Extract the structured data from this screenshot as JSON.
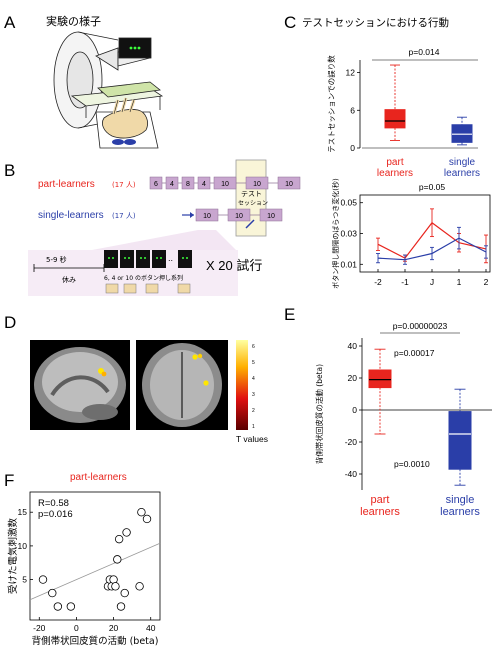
{
  "panels": {
    "A": {
      "letter": "A",
      "title": "実験の様子"
    },
    "B": {
      "letter": "B",
      "part_label": "part-learners",
      "part_n": "(17 人)",
      "single_label": "single-learners",
      "single_n": "(17 人)",
      "part_seq": [
        "6",
        "4",
        "8",
        "4",
        "10",
        "10",
        "10"
      ],
      "single_seq": [
        "10",
        "10",
        "10"
      ],
      "test_label_1": "テスト",
      "test_label_2": "セッション",
      "time_label": "5-9 秒",
      "rest_label": "休み",
      "press_label": "6, 4 or 10 のボタン押し系列",
      "repeat_label": "X 20 試行"
    },
    "C": {
      "letter": "C",
      "title": "テストセッションにおける行動"
    },
    "D": {
      "letter": "D",
      "colorbar_label": "T values",
      "colorbar_ticks": [
        "1",
        "2",
        "3",
        "4",
        "5",
        "6"
      ]
    },
    "E": {
      "letter": "E"
    },
    "F": {
      "letter": "F",
      "title": "part-learners"
    }
  },
  "chart_data": [
    {
      "type": "box",
      "panel": "C-top",
      "ylabel": "テストセッションでの誤り数",
      "categories": [
        "part learners",
        "single learners"
      ],
      "yticks": [
        0,
        6,
        12
      ],
      "ylim": [
        0,
        14
      ],
      "annotation": "p=0.014",
      "boxes": [
        {
          "name": "part learners",
          "min": 1.2,
          "q1": 3.2,
          "median": 4.3,
          "q3": 6.1,
          "max": 13.2,
          "color": "#e8251e"
        },
        {
          "name": "single learners",
          "min": 0.5,
          "q1": 0.9,
          "median": 2.2,
          "q3": 3.7,
          "max": 4.9,
          "color": "#2a3ea8"
        }
      ]
    },
    {
      "type": "line",
      "panel": "C-bottom",
      "ylabel": "ボタン押し間隔のばらつき変化(秒)",
      "x": [
        "-2",
        "-1",
        "J",
        "1",
        "2"
      ],
      "yticks": [
        0.01,
        0.03,
        0.05
      ],
      "ylim": [
        0.005,
        0.055
      ],
      "annotation": "p=0.05",
      "series": [
        {
          "name": "part learners",
          "color": "#e8251e",
          "values": [
            0.023,
            0.014,
            0.037,
            0.024,
            0.02
          ],
          "err": [
            0.004,
            0.002,
            0.009,
            0.006,
            0.009
          ]
        },
        {
          "name": "single learners",
          "color": "#2a3ea8",
          "values": [
            0.014,
            0.013,
            0.017,
            0.027,
            0.018
          ],
          "err": [
            0.003,
            0.003,
            0.004,
            0.007,
            0.004
          ]
        }
      ]
    },
    {
      "type": "box",
      "panel": "E",
      "ylabel": "背側帯状回皮質の活動 (beta)",
      "categories": [
        "part learners",
        "single learners"
      ],
      "yticks": [
        40,
        20,
        0,
        -20,
        -40
      ],
      "ylim": [
        -50,
        45
      ],
      "annotations": [
        "p=0.00000023",
        "p=0.00017",
        "p=0.0010"
      ],
      "boxes": [
        {
          "name": "part learners",
          "min": -15,
          "q1": 14,
          "median": 19,
          "q3": 25,
          "max": 38,
          "color": "#e8251e"
        },
        {
          "name": "single learners",
          "min": -47,
          "q1": -37,
          "median": -15,
          "q3": -1,
          "max": 13,
          "color": "#2a3ea8"
        }
      ]
    },
    {
      "type": "scatter",
      "panel": "F",
      "xlabel": "背側帯状回皮質の活動 (beta)",
      "ylabel": "受けた電気刺激数",
      "xticks": [
        -20,
        0,
        20,
        40
      ],
      "yticks": [
        5,
        10,
        15
      ],
      "xlim": [
        -25,
        45
      ],
      "ylim": [
        -1,
        18
      ],
      "stats": [
        "R=0.58",
        "p=0.016"
      ],
      "fit": {
        "x": [
          -25,
          45
        ],
        "y": [
          2.0,
          10.4
        ]
      },
      "points": [
        {
          "x": -18,
          "y": 5
        },
        {
          "x": -13,
          "y": 3
        },
        {
          "x": -10,
          "y": 1
        },
        {
          "x": -3,
          "y": 1
        },
        {
          "x": 17,
          "y": 4
        },
        {
          "x": 18,
          "y": 5
        },
        {
          "x": 19,
          "y": 4
        },
        {
          "x": 20,
          "y": 5
        },
        {
          "x": 21,
          "y": 4
        },
        {
          "x": 22,
          "y": 8
        },
        {
          "x": 23,
          "y": 11
        },
        {
          "x": 24,
          "y": 1
        },
        {
          "x": 26,
          "y": 3
        },
        {
          "x": 27,
          "y": 12
        },
        {
          "x": 34,
          "y": 4
        },
        {
          "x": 35,
          "y": 15
        },
        {
          "x": 38,
          "y": 14
        }
      ]
    }
  ]
}
